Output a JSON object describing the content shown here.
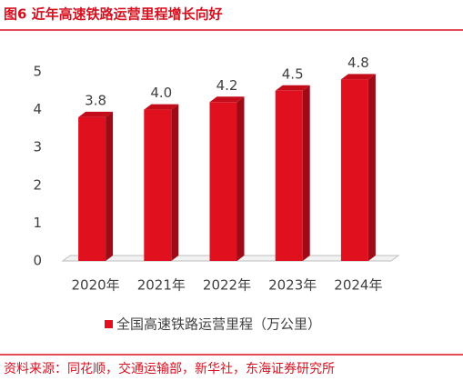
{
  "chart_data": {
    "type": "bar3d",
    "title": "图6  近年高速铁路运营里程增长向好",
    "categories": [
      "2020年",
      "2021年",
      "2022年",
      "2023年",
      "2024年"
    ],
    "series": [
      {
        "name": "全国高速铁路运营里程（万公里）",
        "color": "#e0101f",
        "values": [
          3.8,
          4.0,
          4.2,
          4.5,
          4.8
        ],
        "value_labels": [
          "3.8",
          "4.0",
          "4.2",
          "4.5",
          "4.8"
        ]
      }
    ],
    "ylim": [
      0,
      5
    ],
    "yticks": [
      0,
      1,
      2,
      3,
      4,
      5
    ],
    "grid": false,
    "source": "资料来源：同花顺，交通运输部，新华社，东海证券研究所"
  }
}
